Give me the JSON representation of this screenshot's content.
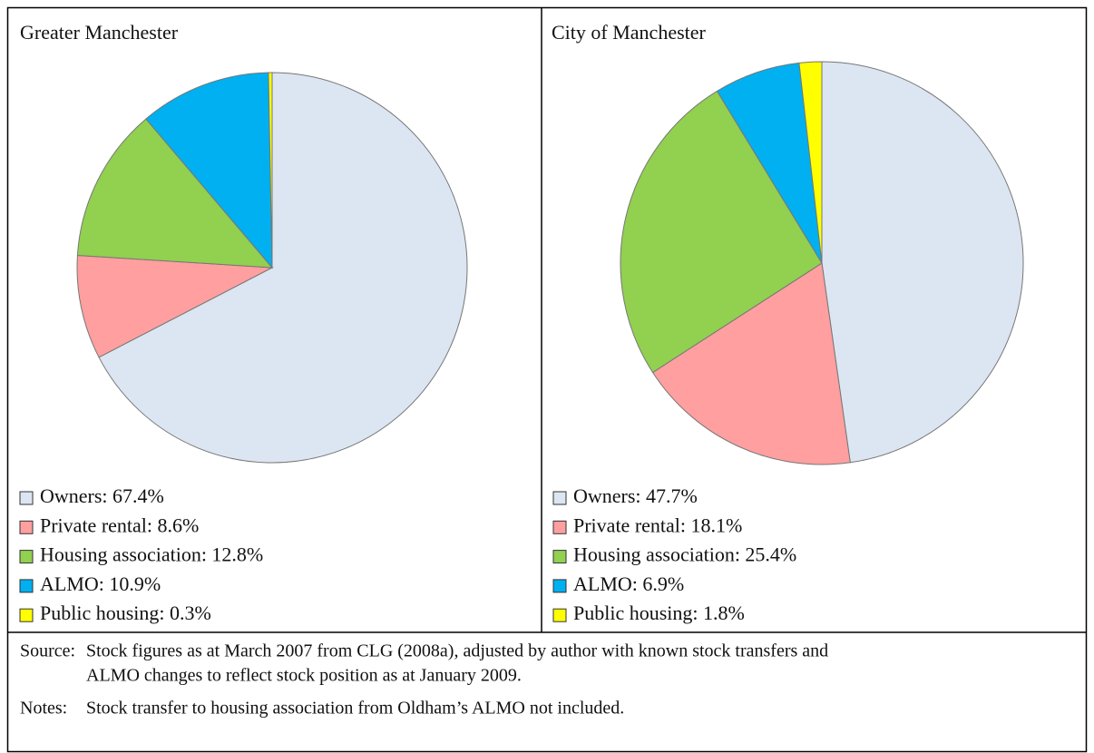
{
  "chart_data": [
    {
      "type": "pie",
      "title": "Greater Manchester",
      "categories": [
        "Owners: 67.4%",
        "Private rental: 8.6%",
        "Housing association: 12.8%",
        "ALMO: 10.9%",
        "Public housing: 0.3%"
      ],
      "values": [
        67.4,
        8.6,
        12.8,
        10.9,
        0.3
      ],
      "colors": [
        "#dce6f2",
        "#ff9f9f",
        "#92d050",
        "#00b0f0",
        "#ffff00"
      ]
    },
    {
      "type": "pie",
      "title": "City of Manchester",
      "categories": [
        "Owners: 47.7%",
        "Private rental: 18.1%",
        "Housing association: 25.4%",
        "ALMO: 6.9%",
        "Public housing: 1.8%"
      ],
      "values": [
        47.7,
        18.1,
        25.4,
        6.9,
        1.8
      ],
      "colors": [
        "#dce6f2",
        "#ff9f9f",
        "#92d050",
        "#00b0f0",
        "#ffff00"
      ]
    }
  ],
  "footer": {
    "source": {
      "label": "Source:",
      "lines": [
        "Stock figures as at March 2007 from CLG (2008a), adjusted by author with known stock transfers and",
        "ALMO changes to reflect stock position as at January 2009."
      ]
    },
    "notes": {
      "label": "Notes:",
      "lines": [
        "Stock transfer to housing association from Oldham’s ALMO not included."
      ]
    }
  }
}
